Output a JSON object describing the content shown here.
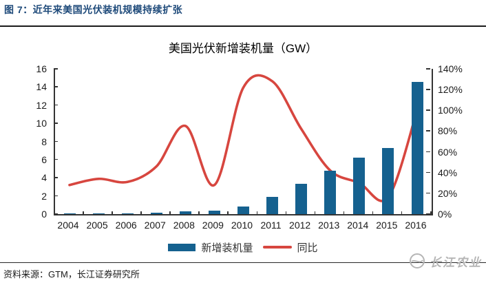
{
  "header": {
    "title": "图 7：近年来美国光伏装机规模持续扩张"
  },
  "chart_data": {
    "type": "bar",
    "title": "美国光伏新增装机量（GW）",
    "categories": [
      "2004",
      "2005",
      "2006",
      "2007",
      "2008",
      "2009",
      "2010",
      "2011",
      "2012",
      "2013",
      "2014",
      "2015",
      "2016"
    ],
    "series": [
      {
        "name": "新增装机量",
        "type": "bar",
        "axis": "left",
        "color": "#15618f",
        "values": [
          0.06,
          0.08,
          0.11,
          0.16,
          0.3,
          0.39,
          0.85,
          1.92,
          3.37,
          4.78,
          6.25,
          7.3,
          14.6
        ]
      },
      {
        "name": "同比",
        "type": "line",
        "axis": "right",
        "color": "#d7463f",
        "values": [
          28,
          34,
          31,
          46,
          85,
          28,
          122,
          128,
          82,
          42,
          30,
          16,
          100
        ]
      }
    ],
    "left_axis": {
      "min": 0,
      "max": 16,
      "tick_labels": [
        "16",
        "14",
        "12",
        "10",
        "8",
        "6",
        "4",
        "2",
        "0"
      ]
    },
    "right_axis": {
      "min": 0,
      "max": 140,
      "tick_labels": [
        "140%",
        "120%",
        "100%",
        "80%",
        "60%",
        "40%",
        "20%",
        "0%"
      ],
      "unit": "%"
    },
    "legend_position": "bottom",
    "grid": false
  },
  "colors": {
    "header_text": "#1e4a7a",
    "bar": "#15618f",
    "line": "#d7463f",
    "axis": "#333333",
    "logo_gray": "#b5b5b5"
  },
  "footer": {
    "source": "资料来源：GTM，长江证券研究所",
    "logo_text": "长江农业"
  }
}
